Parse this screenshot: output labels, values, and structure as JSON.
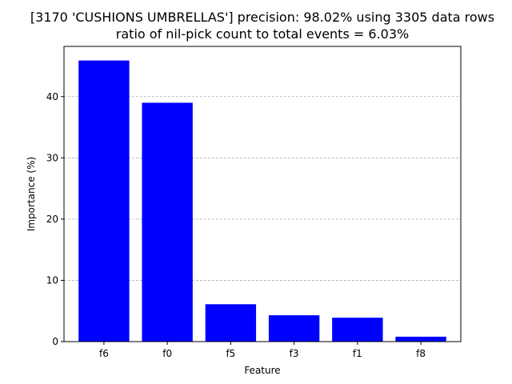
{
  "chart_data": {
    "type": "bar",
    "title_line1": "[3170 'CUSHIONS UMBRELLAS'] precision: 98.02% using 3305 data rows",
    "title_line2": "ratio of nil-pick count to total events = 6.03%",
    "categories": [
      "f6",
      "f0",
      "f5",
      "f3",
      "f1",
      "f8"
    ],
    "values": [
      45.9,
      39.0,
      6.1,
      4.3,
      3.9,
      0.8
    ],
    "xlabel": "Feature",
    "ylabel": "Importance (%)",
    "ylim": [
      0,
      48.2
    ],
    "yticks": [
      0,
      10,
      20,
      30,
      40
    ],
    "grid": "y-axis dashed",
    "bar_color": "#0000ff",
    "grid_color": "#b0b0b0"
  }
}
